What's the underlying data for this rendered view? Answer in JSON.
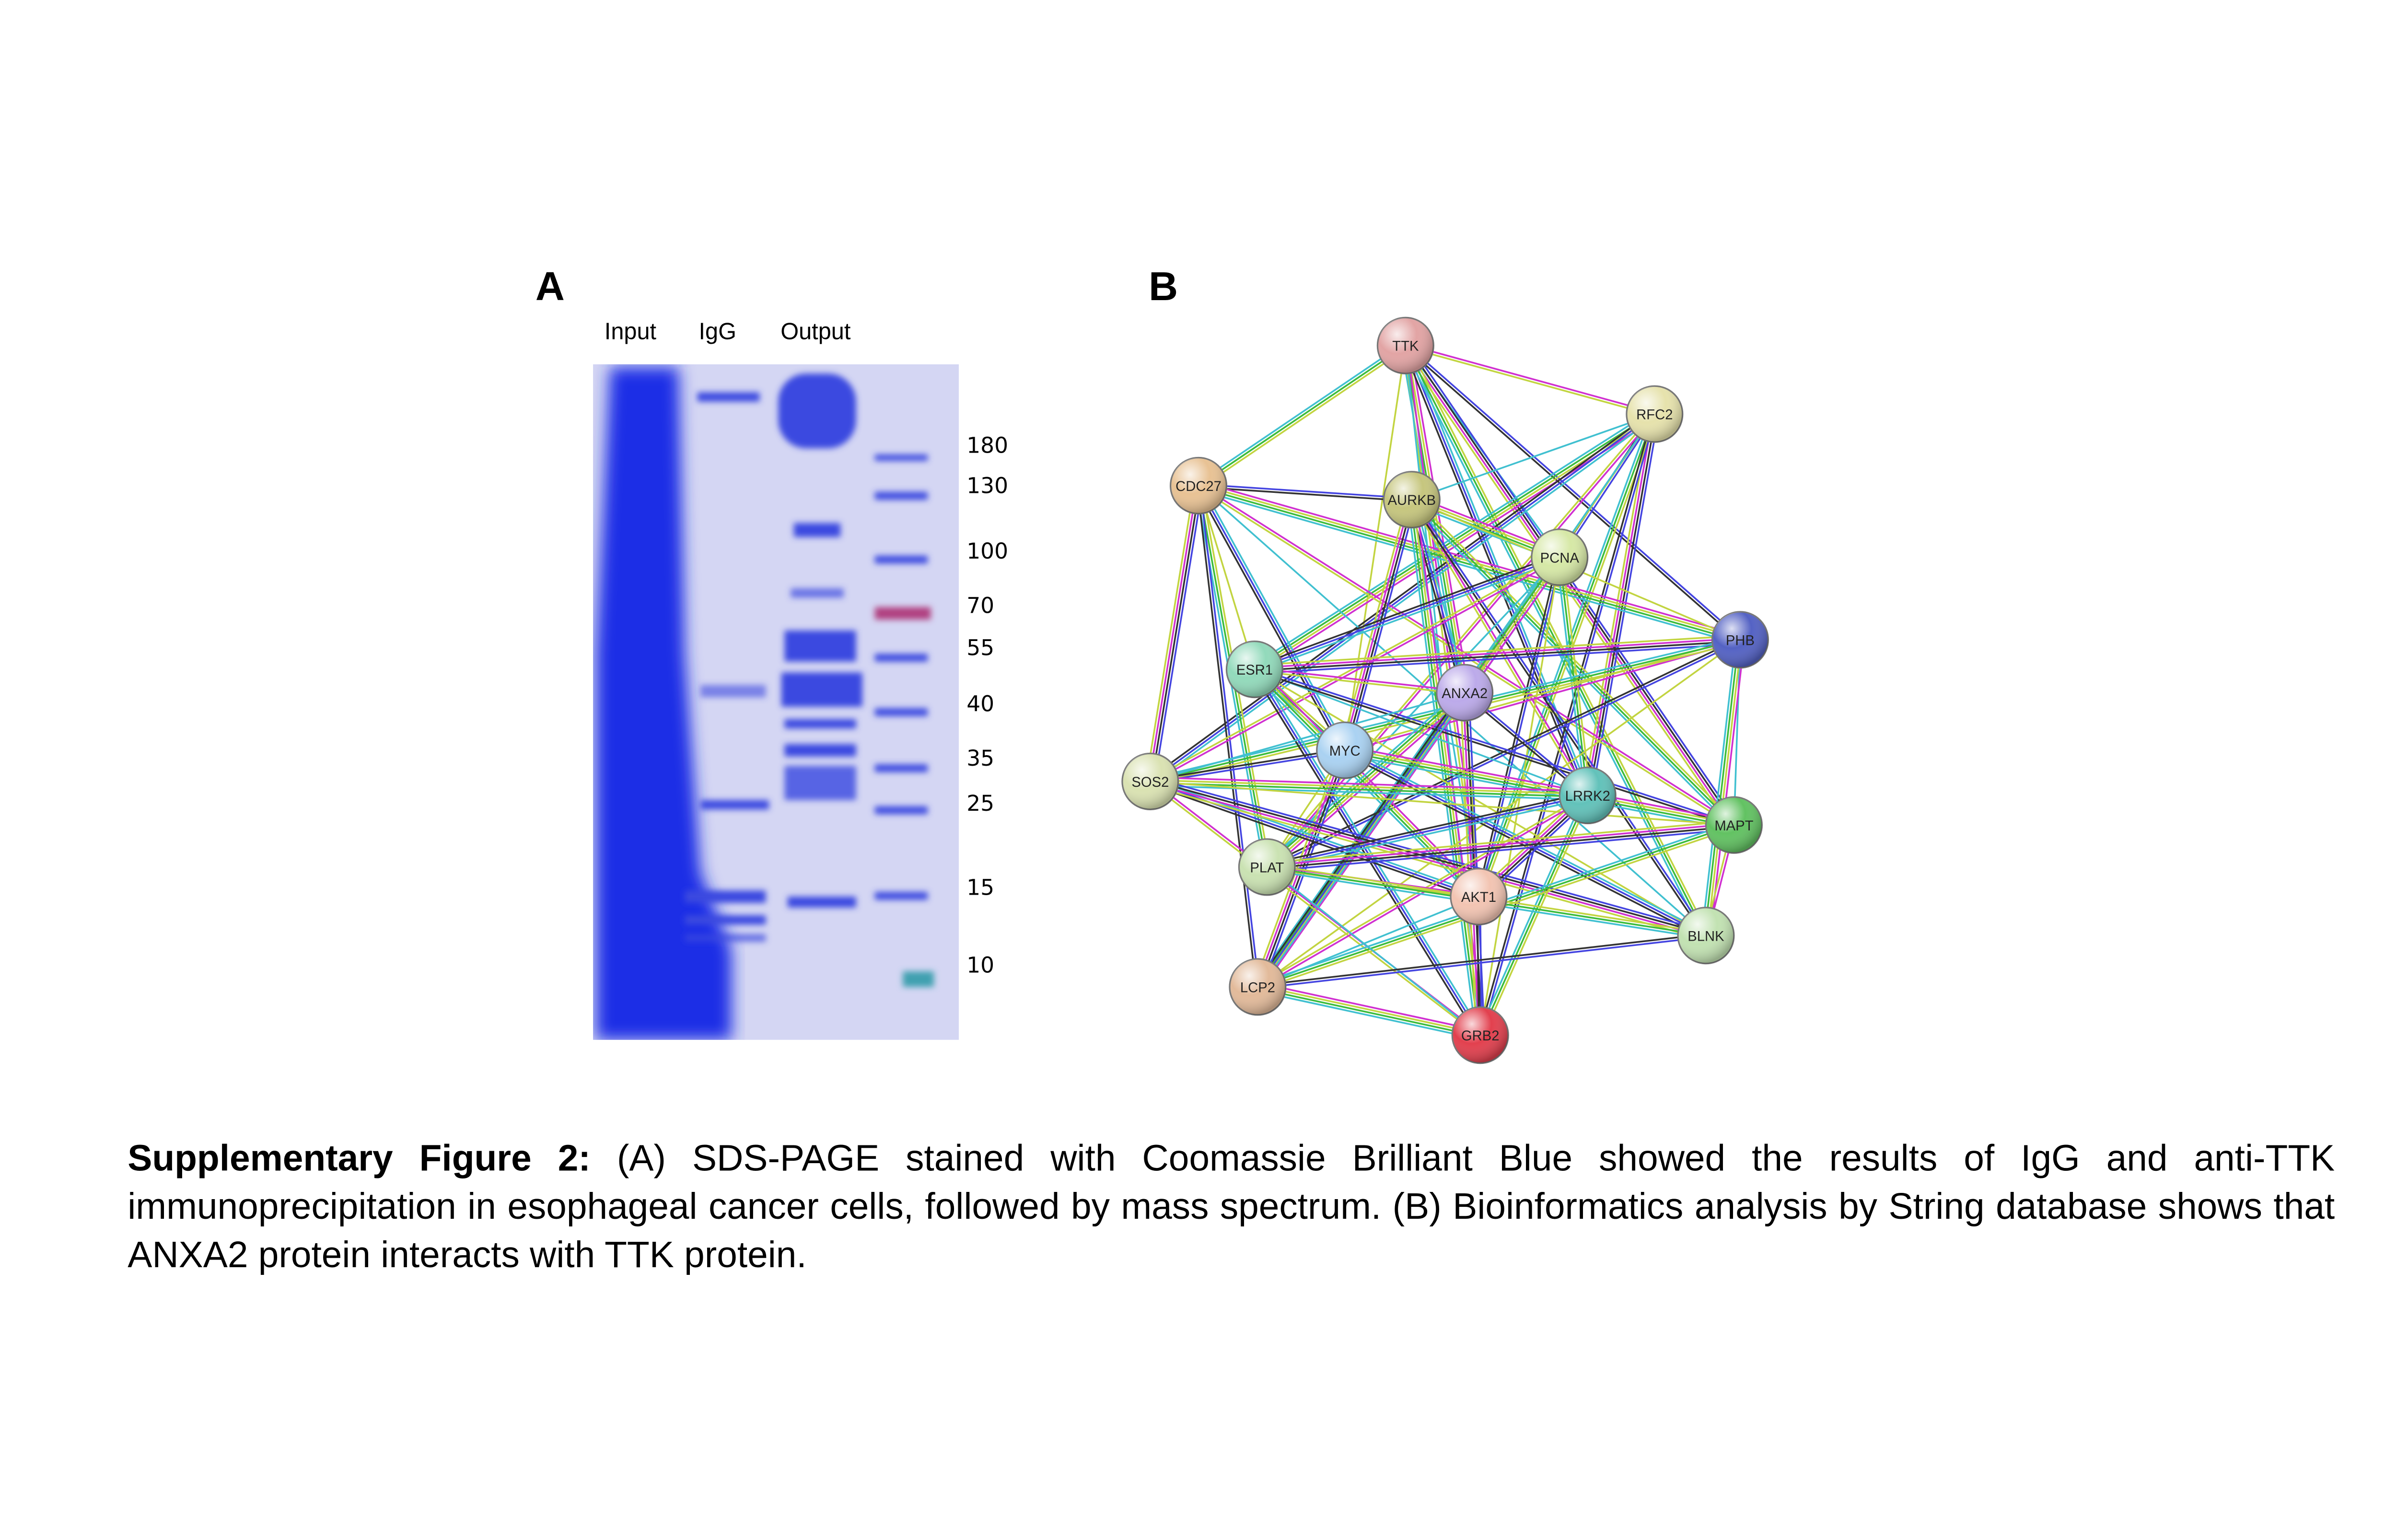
{
  "panel_a": {
    "label": "A",
    "lanes": [
      "Input",
      "IgG",
      "Output"
    ],
    "markers": [
      180,
      130,
      100,
      70,
      55,
      40,
      35,
      25,
      15,
      10
    ]
  },
  "panel_b": {
    "label": "B",
    "nodes": [
      {
        "label": "TTK"
      },
      {
        "label": "RFC2"
      },
      {
        "label": "CDC27"
      },
      {
        "label": "AURKB"
      },
      {
        "label": "PCNA"
      },
      {
        "label": "PHB"
      },
      {
        "label": "ESR1"
      },
      {
        "label": "ANXA2"
      },
      {
        "label": "MYC"
      },
      {
        "label": "SOS2"
      },
      {
        "label": "LRRK2"
      },
      {
        "label": "MAPT"
      },
      {
        "label": "PLAT"
      },
      {
        "label": "AKT1"
      },
      {
        "label": "BLNK"
      },
      {
        "label": "LCP2"
      },
      {
        "label": "GRB2"
      }
    ]
  },
  "caption": {
    "label": "Supplementary Figure 2:",
    "text": " (A) SDS-PAGE stained with Coomassie Brilliant Blue showed the results of IgG and anti-TTK immunoprecipitation in esophageal cancer cells, followed by mass spectrum. (B) Bioinformatics analysis by String database shows that ANXA2 protein interacts with TTK protein."
  }
}
